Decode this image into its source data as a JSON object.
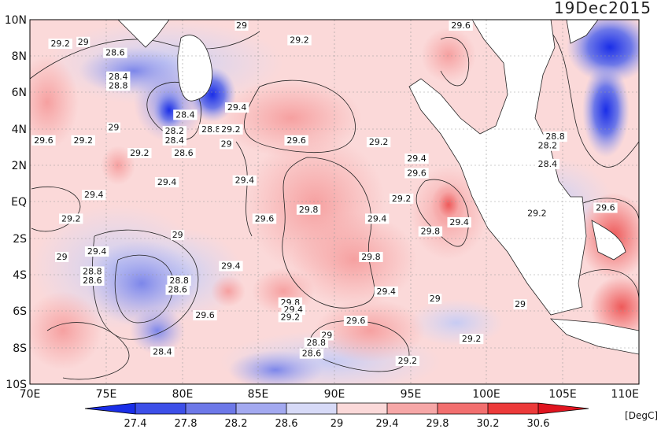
{
  "map": {
    "date": "19Dec2015",
    "variable_unit": "[DegC]",
    "lon_ticks": [
      "70E",
      "75E",
      "80E",
      "85E",
      "90E",
      "95E",
      "100E",
      "105E",
      "110E"
    ],
    "lat_ticks": [
      "10N",
      "8N",
      "6N",
      "4N",
      "2N",
      "EQ",
      "2S",
      "4S",
      "6S",
      "8S",
      "10S"
    ],
    "extent": {
      "lon": [
        70,
        110
      ],
      "lat": [
        -10,
        10
      ]
    },
    "colorbar": {
      "levels": [
        "27.4",
        "27.8",
        "28.2",
        "28.6",
        "29",
        "29.4",
        "29.8",
        "30.2",
        "30.6"
      ],
      "colors": [
        "#1a2ee8",
        "#3d4fe8",
        "#6d78e8",
        "#a3a9f0",
        "#d7daf7",
        "#fbd9d9",
        "#f6a7a7",
        "#f26f6f",
        "#ec3a3a",
        "#e0141f"
      ]
    },
    "contour_labels": [
      {
        "text": "29",
        "lon": 83.9,
        "lat": 9.7
      },
      {
        "text": "29.2",
        "lon": 72,
        "lat": 8.7
      },
      {
        "text": "29",
        "lon": 73.5,
        "lat": 8.8
      },
      {
        "text": "28.6",
        "lon": 75.6,
        "lat": 8.2
      },
      {
        "text": "29.2",
        "lon": 87.7,
        "lat": 8.9
      },
      {
        "text": "29.6",
        "lon": 98.3,
        "lat": 9.7
      },
      {
        "text": "28.4",
        "lon": 75.8,
        "lat": 6.9
      },
      {
        "text": "28.8",
        "lon": 75.8,
        "lat": 6.4
      },
      {
        "text": "29.4",
        "lon": 83.6,
        "lat": 5.2
      },
      {
        "text": "28.4",
        "lon": 80.2,
        "lat": 4.8
      },
      {
        "text": "29",
        "lon": 75.5,
        "lat": 4.1
      },
      {
        "text": "28.2",
        "lon": 79.5,
        "lat": 3.9
      },
      {
        "text": "28.4",
        "lon": 79.5,
        "lat": 3.4
      },
      {
        "text": "28.8",
        "lon": 81.9,
        "lat": 4.0
      },
      {
        "text": "29.2",
        "lon": 83.2,
        "lat": 4.0
      },
      {
        "text": "29",
        "lon": 82.9,
        "lat": 3.2
      },
      {
        "text": "29.6",
        "lon": 70.9,
        "lat": 3.4
      },
      {
        "text": "29.2",
        "lon": 73.5,
        "lat": 3.4
      },
      {
        "text": "29.2",
        "lon": 77.2,
        "lat": 2.7
      },
      {
        "text": "28.6",
        "lon": 80.1,
        "lat": 2.7
      },
      {
        "text": "29.6",
        "lon": 87.5,
        "lat": 3.4
      },
      {
        "text": "29.2",
        "lon": 92.9,
        "lat": 3.3
      },
      {
        "text": "29.4",
        "lon": 95.4,
        "lat": 2.4
      },
      {
        "text": "29.6",
        "lon": 95.4,
        "lat": 1.6
      },
      {
        "text": "28.8",
        "lon": 104.5,
        "lat": 3.6
      },
      {
        "text": "28.2",
        "lon": 104.0,
        "lat": 3.1
      },
      {
        "text": "28.4",
        "lon": 104.0,
        "lat": 2.1
      },
      {
        "text": "29.4",
        "lon": 84.1,
        "lat": 1.2
      },
      {
        "text": "29.4",
        "lon": 79.0,
        "lat": 1.1
      },
      {
        "text": "29.4",
        "lon": 74.2,
        "lat": 0.4
      },
      {
        "text": "29.2",
        "lon": 94.4,
        "lat": 0.2
      },
      {
        "text": "29.2",
        "lon": 103.3,
        "lat": -0.6
      },
      {
        "text": "29.6",
        "lon": 107.8,
        "lat": -0.3
      },
      {
        "text": "29.8",
        "lon": 88.3,
        "lat": -0.4
      },
      {
        "text": "29.6",
        "lon": 85.4,
        "lat": -0.9
      },
      {
        "text": "29.4",
        "lon": 92.8,
        "lat": -0.9
      },
      {
        "text": "29.2",
        "lon": 72.7,
        "lat": -0.9
      },
      {
        "text": "29.8",
        "lon": 96.3,
        "lat": -1.6
      },
      {
        "text": "29.4",
        "lon": 98.2,
        "lat": -1.1
      },
      {
        "text": "29",
        "lon": 79.7,
        "lat": -1.8
      },
      {
        "text": "29.4",
        "lon": 74.4,
        "lat": -2.7
      },
      {
        "text": "29",
        "lon": 72.1,
        "lat": -3.0
      },
      {
        "text": "29.8",
        "lon": 92.4,
        "lat": -3.0
      },
      {
        "text": "29.4",
        "lon": 83.2,
        "lat": -3.5
      },
      {
        "text": "28.8",
        "lon": 74.1,
        "lat": -3.8
      },
      {
        "text": "28.6",
        "lon": 74.1,
        "lat": -4.3
      },
      {
        "text": "28.8",
        "lon": 79.8,
        "lat": -4.3
      },
      {
        "text": "28.6",
        "lon": 79.7,
        "lat": -4.8
      },
      {
        "text": "29.4",
        "lon": 93.4,
        "lat": -4.9
      },
      {
        "text": "29",
        "lon": 96.6,
        "lat": -5.3
      },
      {
        "text": "29",
        "lon": 102.2,
        "lat": -5.6
      },
      {
        "text": "29.8",
        "lon": 87.1,
        "lat": -5.5
      },
      {
        "text": "29.4",
        "lon": 87.3,
        "lat": -5.9
      },
      {
        "text": "29.2",
        "lon": 87.1,
        "lat": -6.3
      },
      {
        "text": "29.6",
        "lon": 81.5,
        "lat": -6.2
      },
      {
        "text": "29.6",
        "lon": 91.4,
        "lat": -6.5
      },
      {
        "text": "29",
        "lon": 89.5,
        "lat": -7.3
      },
      {
        "text": "28.8",
        "lon": 88.8,
        "lat": -7.7
      },
      {
        "text": "29.2",
        "lon": 99.0,
        "lat": -7.5
      },
      {
        "text": "28.4",
        "lon": 78.7,
        "lat": -8.2
      },
      {
        "text": "28.6",
        "lon": 88.5,
        "lat": -8.3
      },
      {
        "text": "29.2",
        "lon": 94.8,
        "lat": -8.7
      }
    ]
  }
}
